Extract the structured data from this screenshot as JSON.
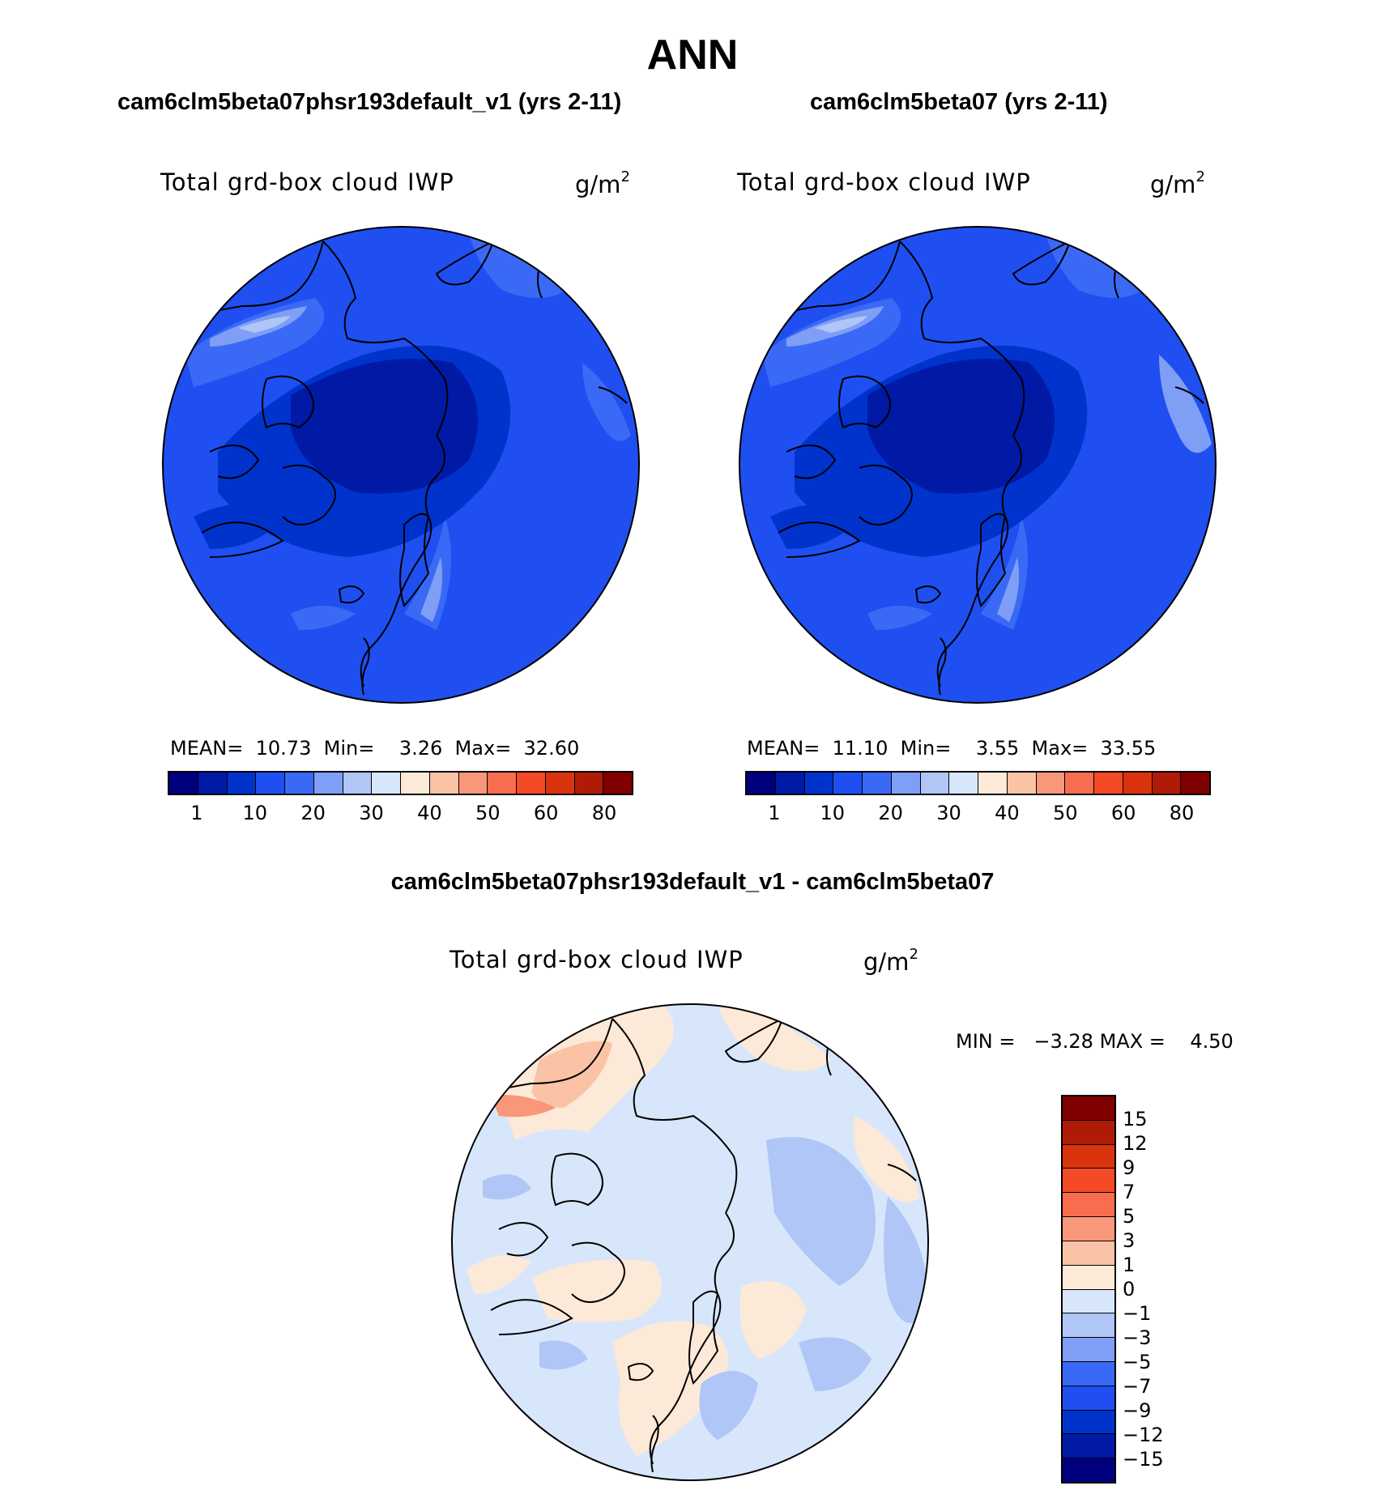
{
  "figure": {
    "season": "ANN",
    "variable_label": "Total grd-box cloud IWP",
    "unit_base": "g/m",
    "unit_exp": "2"
  },
  "panels": [
    {
      "title": "cam6clm5beta07phsr193default_v1 (yrs 2-11)",
      "mean_label": "MEAN=",
      "mean": "10.73",
      "min_label": "Min=",
      "min": "3.26",
      "max_label": "Max=",
      "max": "32.60"
    },
    {
      "title": "cam6clm5beta07 (yrs 2-11)",
      "mean_label": "MEAN=",
      "mean": "11.10",
      "min_label": "Min=",
      "min": "3.55",
      "max_label": "Max=",
      "max": "33.55"
    }
  ],
  "diff_panel": {
    "title": "cam6clm5beta07phsr193default_v1 - cam6clm5beta07",
    "min_label": "MIN =",
    "min": "−3.28",
    "max_label": "MAX =",
    "max": "4.50"
  },
  "colorbars": {
    "abs_colors": [
      "#00007f",
      "#001aa6",
      "#0033cc",
      "#1f4ff0",
      "#3a6af5",
      "#7f9ef6",
      "#b0c6f7",
      "#d8e6fb",
      "#fde9d7",
      "#fbc3a6",
      "#f9977a",
      "#f76d4e",
      "#f44a25",
      "#d9340e",
      "#b01b07",
      "#800000"
    ],
    "abs_ticks": [
      "1",
      "10",
      "20",
      "30",
      "40",
      "50",
      "60",
      "80"
    ],
    "diff_colors": [
      "#800000",
      "#b01b07",
      "#d9340e",
      "#f44a25",
      "#f76d4e",
      "#f9977a",
      "#fbc3a6",
      "#fde9d7",
      "#d8e6fb",
      "#b0c6f7",
      "#7f9ef6",
      "#3a6af5",
      "#1f4ff0",
      "#0033cc",
      "#001aa6",
      "#00007f"
    ],
    "diff_ticks": [
      "15",
      "12",
      "9",
      "7",
      "5",
      "3",
      "1",
      "0",
      "−1",
      "−3",
      "−5",
      "−7",
      "−9",
      "−12",
      "−15"
    ]
  },
  "chart_data": [
    {
      "type": "heatmap",
      "projection": "north-polar-stereographic",
      "title": "cam6clm5beta07phsr193default_v1 (yrs 2-11)",
      "variable": "Total grd-box cloud IWP",
      "units": "g/m2",
      "levels": [
        1,
        10,
        20,
        30,
        40,
        50,
        60,
        80
      ],
      "mean": 10.73,
      "min": 3.26,
      "max": 32.6
    },
    {
      "type": "heatmap",
      "projection": "north-polar-stereographic",
      "title": "cam6clm5beta07 (yrs 2-11)",
      "variable": "Total grd-box cloud IWP",
      "units": "g/m2",
      "levels": [
        1,
        10,
        20,
        30,
        40,
        50,
        60,
        80
      ],
      "mean": 11.1,
      "min": 3.55,
      "max": 33.55
    },
    {
      "type": "heatmap",
      "projection": "north-polar-stereographic",
      "title": "cam6clm5beta07phsr193default_v1 - cam6clm5beta07",
      "variable": "Total grd-box cloud IWP",
      "units": "g/m2",
      "levels": [
        -15,
        -12,
        -9,
        -7,
        -5,
        -3,
        -1,
        0,
        1,
        3,
        5,
        7,
        9,
        12,
        15
      ],
      "min": -3.28,
      "max": 4.5
    }
  ]
}
